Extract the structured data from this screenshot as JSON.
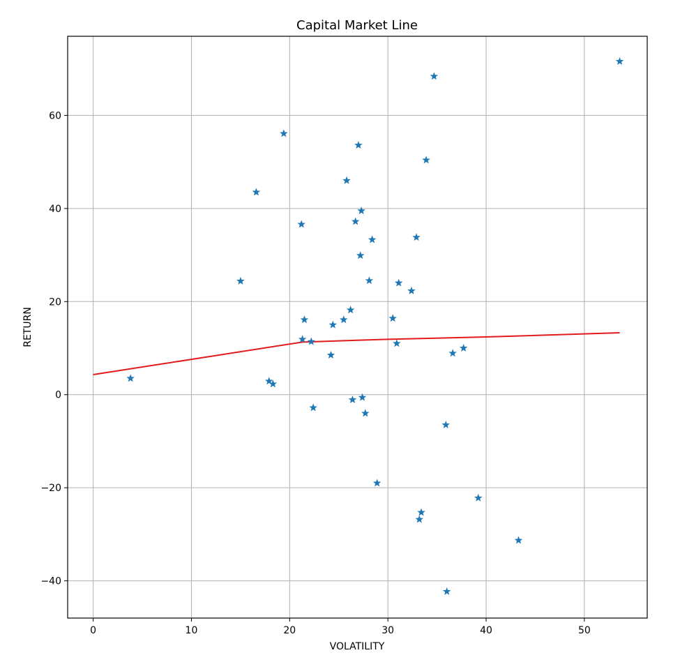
{
  "chart_data": {
    "type": "scatter",
    "title": "Capital Market Line",
    "xlabel": "VOLATILITY",
    "ylabel": "RETURN",
    "xlim": [
      -2.6,
      56.4
    ],
    "ylim": [
      -48.0,
      77.0
    ],
    "xticks": [
      0,
      10,
      20,
      30,
      40,
      50
    ],
    "yticks": [
      -40,
      -20,
      0,
      20,
      40,
      60
    ],
    "grid": true,
    "colors": {
      "points": "#1f77b4",
      "line": "#e31a1c"
    },
    "marker": "star",
    "series": [
      {
        "kind": "scatter",
        "points": [
          [
            3.8,
            3.5
          ],
          [
            15.0,
            24.4
          ],
          [
            16.6,
            43.5
          ],
          [
            17.9,
            2.9
          ],
          [
            18.3,
            2.3
          ],
          [
            19.4,
            56.1
          ],
          [
            21.2,
            36.6
          ],
          [
            21.3,
            11.9
          ],
          [
            21.5,
            16.1
          ],
          [
            22.2,
            11.4
          ],
          [
            22.4,
            -2.8
          ],
          [
            24.2,
            8.5
          ],
          [
            24.4,
            15.0
          ],
          [
            25.5,
            16.1
          ],
          [
            25.8,
            46.0
          ],
          [
            26.2,
            18.2
          ],
          [
            26.4,
            -1.1
          ],
          [
            26.7,
            37.2
          ],
          [
            27.0,
            53.6
          ],
          [
            27.2,
            29.9
          ],
          [
            27.3,
            39.5
          ],
          [
            27.4,
            -0.6
          ],
          [
            27.7,
            -4.0
          ],
          [
            28.1,
            24.5
          ],
          [
            28.4,
            33.3
          ],
          [
            28.9,
            -19.0
          ],
          [
            30.5,
            16.4
          ],
          [
            30.9,
            11.0
          ],
          [
            31.1,
            24.0
          ],
          [
            32.4,
            22.3
          ],
          [
            32.9,
            33.8
          ],
          [
            33.2,
            -26.8
          ],
          [
            33.4,
            -25.3
          ],
          [
            33.9,
            50.4
          ],
          [
            34.7,
            68.4
          ],
          [
            35.9,
            -6.5
          ],
          [
            36.0,
            -42.3
          ],
          [
            36.6,
            8.9
          ],
          [
            37.7,
            10.0
          ],
          [
            39.2,
            -22.2
          ],
          [
            43.3,
            -31.3
          ],
          [
            53.6,
            71.6
          ]
        ]
      },
      {
        "kind": "line",
        "points": [
          [
            0.0,
            4.3
          ],
          [
            21.3,
            11.3
          ],
          [
            30.0,
            11.9
          ],
          [
            40.0,
            12.4
          ],
          [
            53.6,
            13.3
          ]
        ]
      }
    ]
  }
}
